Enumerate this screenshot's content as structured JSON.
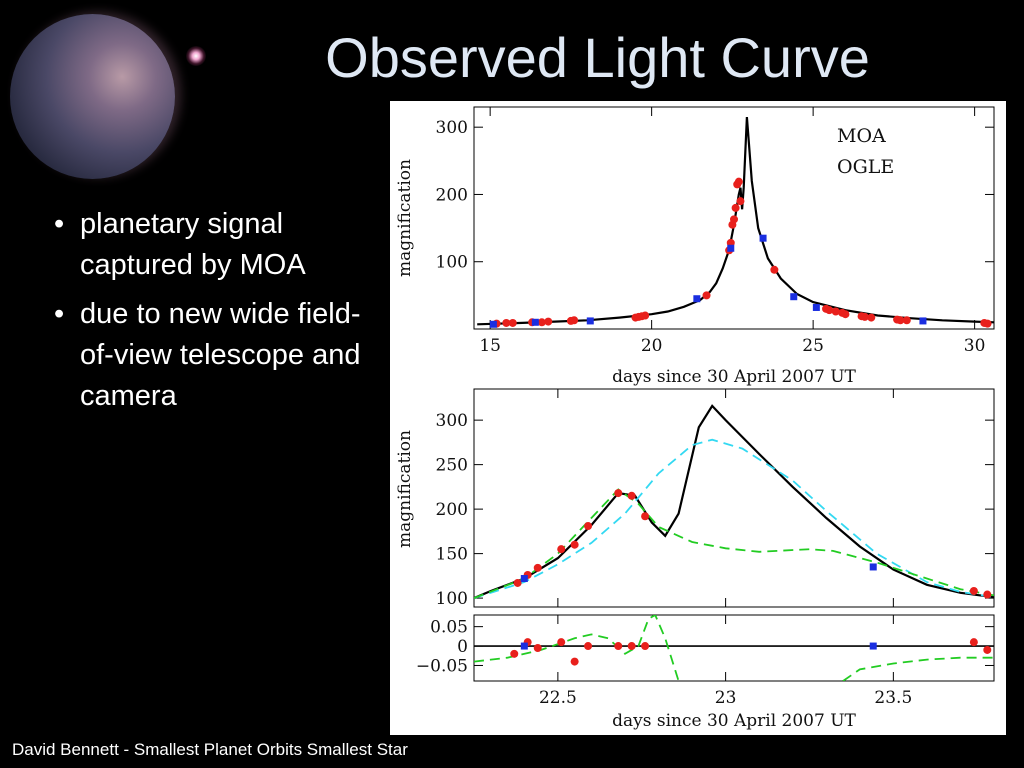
{
  "slide": {
    "title": "Observed Light Curve",
    "bullets": [
      "planetary signal captured by MOA",
      "due to new wide field-of-view telescope and camera"
    ],
    "footer": "David Bennett - Smallest Planet Orbits Smallest Star"
  },
  "colors": {
    "moa": "#e8201c",
    "ogle": "#1a2ee0",
    "model": "#000000",
    "pspl": "#33d9f2",
    "alt_model": "#22cc22"
  },
  "chart_data": [
    {
      "type": "scatter",
      "xlabel": "days since 30 April 2007 UT",
      "ylabel": "magnification",
      "xlim": [
        14.5,
        30.6
      ],
      "ylim": [
        0,
        330
      ],
      "xticks": [
        "15",
        "20",
        "25",
        "30"
      ],
      "xtick_values": [
        15,
        20,
        25,
        30
      ],
      "yticks": [
        "100",
        "200",
        "300"
      ],
      "ytick_values": [
        100,
        200,
        300
      ],
      "legend_position": "top-right",
      "series": [
        {
          "name": "MOA",
          "color": "#e8201c",
          "points": [
            [
              15.2,
              8
            ],
            [
              15.5,
              9
            ],
            [
              15.7,
              9
            ],
            [
              16.3,
              10
            ],
            [
              16.6,
              10
            ],
            [
              16.8,
              11
            ],
            [
              17.5,
              12
            ],
            [
              17.6,
              13
            ],
            [
              19.5,
              17
            ],
            [
              19.6,
              18
            ],
            [
              19.7,
              19
            ],
            [
              19.8,
              20
            ],
            [
              21.7,
              50
            ],
            [
              22.4,
              117
            ],
            [
              22.45,
              128
            ],
            [
              22.5,
              155
            ],
            [
              22.55,
              163
            ],
            [
              22.6,
              180
            ],
            [
              22.65,
              215
            ],
            [
              22.7,
              219
            ],
            [
              22.75,
              190
            ],
            [
              23.8,
              88
            ],
            [
              25.4,
              30
            ],
            [
              25.5,
              28
            ],
            [
              25.7,
              26
            ],
            [
              25.9,
              24
            ],
            [
              26.0,
              22
            ],
            [
              26.5,
              19
            ],
            [
              26.6,
              18
            ],
            [
              26.8,
              17
            ],
            [
              27.6,
              14
            ],
            [
              27.7,
              13
            ],
            [
              27.9,
              13
            ],
            [
              30.3,
              9
            ],
            [
              30.4,
              8
            ]
          ]
        },
        {
          "name": "OGLE",
          "color": "#1a2ee0",
          "points": [
            [
              15.1,
              7
            ],
            [
              16.4,
              10
            ],
            [
              18.1,
              12
            ],
            [
              21.4,
              45
            ],
            [
              22.45,
              120
            ],
            [
              23.45,
              135
            ],
            [
              24.4,
              48
            ],
            [
              25.1,
              32
            ],
            [
              28.4,
              12
            ]
          ]
        }
      ],
      "model_curve": {
        "color": "#000000",
        "points": [
          [
            14.6,
            7
          ],
          [
            16,
            9
          ],
          [
            17,
            11
          ],
          [
            18,
            13
          ],
          [
            19,
            17
          ],
          [
            20,
            22
          ],
          [
            20.5,
            26
          ],
          [
            21,
            33
          ],
          [
            21.5,
            43
          ],
          [
            21.8,
            55
          ],
          [
            22.0,
            68
          ],
          [
            22.2,
            90
          ],
          [
            22.4,
            118
          ],
          [
            22.55,
            155
          ],
          [
            22.7,
            200
          ],
          [
            22.75,
            210
          ],
          [
            22.8,
            178
          ],
          [
            22.85,
            210
          ],
          [
            22.95,
            315
          ],
          [
            23.1,
            220
          ],
          [
            23.3,
            150
          ],
          [
            23.6,
            105
          ],
          [
            24,
            75
          ],
          [
            24.5,
            52
          ],
          [
            25,
            40
          ],
          [
            26,
            28
          ],
          [
            27,
            20
          ],
          [
            28,
            16
          ],
          [
            29,
            13
          ],
          [
            30,
            11
          ],
          [
            30.6,
            10
          ]
        ]
      }
    },
    {
      "type": "scatter",
      "xlabel": "days since 30 April 2007 UT",
      "ylabel": "magnification",
      "xlim": [
        22.25,
        23.8
      ],
      "ylim": [
        90,
        335
      ],
      "xticks": [
        "22.5",
        "23",
        "23.5"
      ],
      "xtick_values": [
        22.5,
        23,
        23.5
      ],
      "yticks": [
        "100",
        "150",
        "200",
        "250",
        "300"
      ],
      "ytick_values": [
        100,
        150,
        200,
        250,
        300
      ],
      "series": [
        {
          "name": "MOA",
          "color": "#e8201c",
          "points": [
            [
              22.38,
              117
            ],
            [
              22.41,
              126
            ],
            [
              22.44,
              134
            ],
            [
              22.51,
              155
            ],
            [
              22.55,
              160
            ],
            [
              22.59,
              181
            ],
            [
              22.68,
              218
            ],
            [
              22.72,
              215
            ],
            [
              22.76,
              192
            ],
            [
              23.74,
              108
            ],
            [
              23.78,
              104
            ]
          ]
        },
        {
          "name": "OGLE",
          "color": "#1a2ee0",
          "points": [
            [
              22.4,
              122
            ],
            [
              23.44,
              135
            ]
          ]
        }
      ],
      "models": [
        {
          "kind": "planetary",
          "color": "#000000",
          "style": "solid",
          "points": [
            [
              22.25,
              100
            ],
            [
              22.3,
              108
            ],
            [
              22.4,
              122
            ],
            [
              22.5,
              145
            ],
            [
              22.6,
              182
            ],
            [
              22.68,
              218
            ],
            [
              22.73,
              215
            ],
            [
              22.78,
              185
            ],
            [
              22.82,
              170
            ],
            [
              22.86,
              195
            ],
            [
              22.92,
              292
            ],
            [
              22.96,
              316
            ],
            [
              23.0,
              300
            ],
            [
              23.1,
              262
            ],
            [
              23.2,
              225
            ],
            [
              23.3,
              190
            ],
            [
              23.4,
              158
            ],
            [
              23.5,
              132
            ],
            [
              23.6,
              115
            ],
            [
              23.7,
              106
            ],
            [
              23.8,
              101
            ]
          ]
        },
        {
          "kind": "single-lens",
          "color": "#33d9f2",
          "style": "dashed",
          "points": [
            [
              22.25,
              100
            ],
            [
              22.4,
              118
            ],
            [
              22.5,
              138
            ],
            [
              22.6,
              162
            ],
            [
              22.7,
              195
            ],
            [
              22.8,
              240
            ],
            [
              22.9,
              272
            ],
            [
              22.96,
              278
            ],
            [
              23.05,
              268
            ],
            [
              23.2,
              232
            ],
            [
              23.3,
              198
            ],
            [
              23.45,
              150
            ],
            [
              23.6,
              118
            ],
            [
              23.7,
              107
            ],
            [
              23.8,
              101
            ]
          ]
        },
        {
          "kind": "alternate",
          "color": "#22cc22",
          "style": "dashed",
          "points": [
            [
              22.25,
              100
            ],
            [
              22.4,
              122
            ],
            [
              22.5,
              150
            ],
            [
              22.6,
              190
            ],
            [
              22.68,
              222
            ],
            [
              22.74,
              206
            ],
            [
              22.8,
              180
            ],
            [
              22.9,
              163
            ],
            [
              23.0,
              156
            ],
            [
              23.1,
              152
            ],
            [
              23.25,
              155
            ],
            [
              23.32,
              153
            ],
            [
              23.45,
              140
            ],
            [
              23.55,
              128
            ],
            [
              23.7,
              110
            ],
            [
              23.8,
              103
            ]
          ]
        }
      ]
    },
    {
      "type": "scatter",
      "xlabel": "days since 30 April 2007 UT",
      "xlim": [
        22.25,
        23.8
      ],
      "ylim": [
        -0.09,
        0.08
      ],
      "yticks": [
        "0.05",
        "0",
        "−0.05"
      ],
      "ytick_values": [
        0.05,
        0,
        -0.05
      ],
      "xticks": [
        "22.5",
        "23",
        "23.5"
      ],
      "xtick_values": [
        22.5,
        23,
        23.5
      ],
      "series": [
        {
          "name": "MOA",
          "color": "#e8201c",
          "points": [
            [
              22.37,
              -0.02
            ],
            [
              22.41,
              0.01
            ],
            [
              22.44,
              -0.005
            ],
            [
              22.51,
              0.01
            ],
            [
              22.55,
              -0.04
            ],
            [
              22.59,
              0.0
            ],
            [
              22.68,
              0.0
            ],
            [
              22.72,
              0.0
            ],
            [
              22.76,
              0.0
            ],
            [
              23.74,
              0.01
            ],
            [
              23.78,
              -0.01
            ]
          ]
        },
        {
          "name": "OGLE",
          "color": "#1a2ee0",
          "points": [
            [
              22.4,
              0.0
            ],
            [
              23.44,
              0.0
            ]
          ]
        }
      ],
      "residual_models": [
        {
          "kind": "alternate",
          "color": "#22cc22",
          "style": "dashed",
          "points": [
            [
              22.25,
              -0.04
            ],
            [
              22.35,
              -0.03
            ],
            [
              22.45,
              -0.01
            ],
            [
              22.55,
              0.02
            ],
            [
              22.6,
              0.03
            ],
            [
              22.65,
              0.02
            ],
            [
              22.7,
              -0.02
            ],
            [
              22.74,
              0.0
            ],
            [
              22.77,
              0.07
            ],
            [
              22.79,
              0.08
            ],
            [
              22.82,
              0.02
            ],
            [
              22.86,
              -0.09
            ]
          ]
        },
        {
          "kind": "alternate",
          "color": "#22cc22",
          "style": "dashed",
          "points": [
            [
              23.35,
              -0.09
            ],
            [
              23.4,
              -0.06
            ],
            [
              23.5,
              -0.045
            ],
            [
              23.6,
              -0.035
            ],
            [
              23.7,
              -0.03
            ],
            [
              23.8,
              -0.03
            ]
          ]
        }
      ]
    }
  ]
}
